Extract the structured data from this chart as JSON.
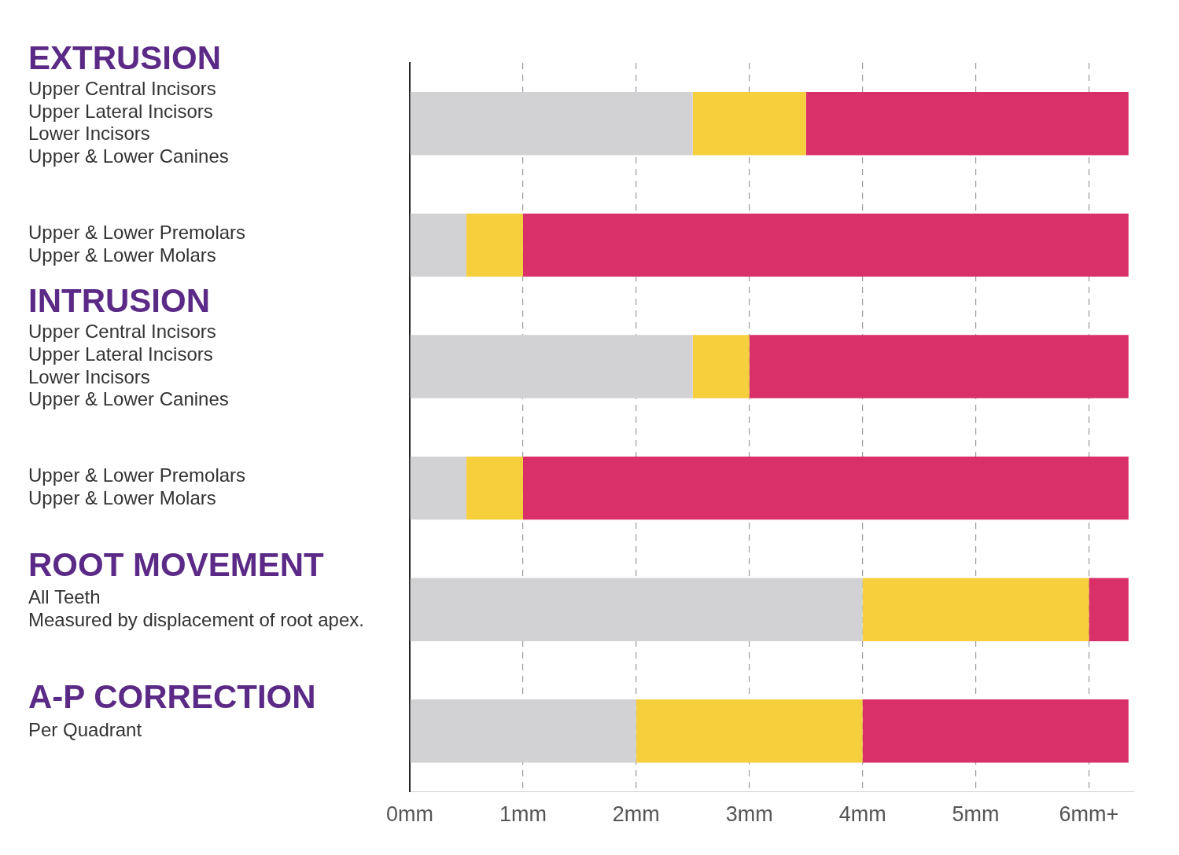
{
  "chart_data": {
    "type": "bar",
    "orientation": "horizontal",
    "stacked": true,
    "grid": "x",
    "legend": false,
    "categories": [
      "Upper Central Incisors\nUpper Lateral Incisors\nLower Incisors\nUpper & Lower Canines",
      "Upper & Lower Premolars\nUpper & Lower Molars",
      "Upper Central Incisors\nUpper Lateral Incisors\nLower Incisors\nUpper & Lower Canines",
      "Upper & Lower Premolars\nUpper & Lower Molars",
      "All Teeth\nMeasured by displacement of root apex.",
      "Per Quadrant"
    ],
    "series": [
      {
        "color": "#d2d2d4",
        "values": [
          2.5,
          0.5,
          2.5,
          0.5,
          4,
          2
        ]
      },
      {
        "color": "#f6cf3c",
        "values": [
          1,
          0.5,
          0.5,
          0.5,
          2,
          2
        ]
      },
      {
        "color": "#d9306a",
        "values": [
          2.85,
          5.35,
          3.35,
          5.35,
          0.35,
          2.35
        ]
      }
    ],
    "xlim": [
      0,
      6.4
    ],
    "xticks": [
      {
        "value": 0,
        "label": "0mm"
      },
      {
        "value": 1,
        "label": "1mm"
      },
      {
        "value": 2,
        "label": "2mm"
      },
      {
        "value": 3,
        "label": "3mm"
      },
      {
        "value": 4,
        "label": "4mm"
      },
      {
        "value": 5,
        "label": "5mm"
      },
      {
        "value": 6,
        "label": "6mm+"
      }
    ],
    "annotations": [
      "EXTRUSION",
      "INTRUSION",
      "ROOT MOVEMENT",
      "A-P CORRECTION"
    ]
  }
}
